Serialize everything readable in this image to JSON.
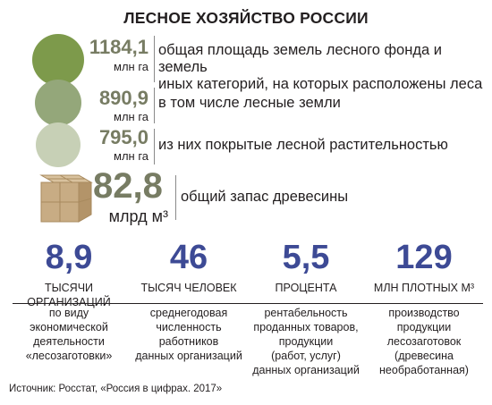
{
  "title": "ЛЕСНОЕ ХОЗЯЙСТВО РОССИИ",
  "colors": {
    "circle_dark": "#7d9a4b",
    "circle_mid": "#94a77a",
    "circle_light": "#c7d0b6",
    "value_text": "#777c63",
    "stat_text": "#3d4a95",
    "box_wood": "#c8ac84"
  },
  "areas": [
    {
      "value": "1184,1",
      "unit": "млн га",
      "desc_lines": [
        "общая площадь земель лесного фонда и земель",
        "иных категорий, на которых расположены леса"
      ]
    },
    {
      "value": "890,9",
      "unit": "млн га",
      "desc_lines": [
        "в том числе лесные земли"
      ]
    },
    {
      "value": "795,0",
      "unit": "млн га",
      "desc_lines": [
        "из них покрытые лесной растительностью"
      ]
    }
  ],
  "timber": {
    "value": "82,8",
    "unit": "млрд м³",
    "desc": "общий запас древесины"
  },
  "stats": [
    {
      "value": "8,9",
      "label": "ТЫСЯЧИ ОРГАНИЗАЦИЙ",
      "desc_lines": [
        "по виду",
        "экономической",
        "деятельности",
        "«лесозаготовки»"
      ]
    },
    {
      "value": "46",
      "label": "ТЫСЯЧ ЧЕЛОВЕК",
      "desc_lines": [
        "среднегодовая",
        "численность",
        "работников",
        "данных организаций"
      ]
    },
    {
      "value": "5,5",
      "label": "ПРОЦЕНТА",
      "desc_lines": [
        "рентабельность",
        "проданных товаров,",
        "продукции",
        "(работ, услуг)",
        "данных организаций"
      ]
    },
    {
      "value": "129",
      "label": "МЛН ПЛОТНЫХ М³",
      "desc_lines": [
        "производство",
        "продукции",
        "лесозаготовок",
        "(древесина",
        "необработанная)"
      ]
    }
  ],
  "source": "Источник: Росстат, «Россия в цифрах. 2017»"
}
